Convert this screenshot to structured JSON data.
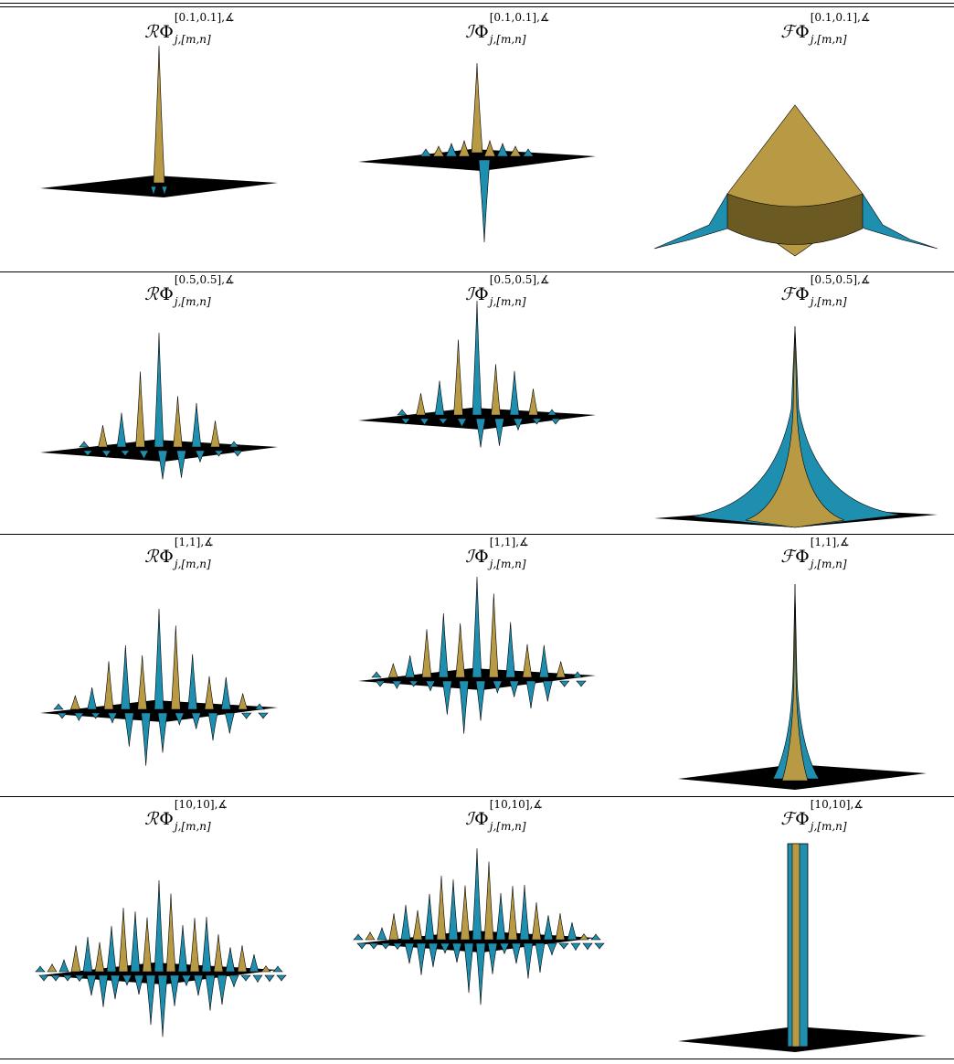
{
  "columns": [
    {
      "operator": "ℛ",
      "symbol": "Φ"
    },
    {
      "operator": "ℐ",
      "symbol": "Φ"
    },
    {
      "operator": "ℱ",
      "symbol": "Φ"
    }
  ],
  "rows": [
    {
      "param": "[0.1,0.1],∡",
      "subscript": "j,[m,n]",
      "cells": [
        {
          "kind": "real",
          "waves": 1,
          "peak": 1.0
        },
        {
          "kind": "imag",
          "waves": 1,
          "peak": 1.0
        },
        {
          "kind": "fourier",
          "style": "wide"
        }
      ]
    },
    {
      "param": "[0.5,0.5],∡",
      "subscript": "j,[m,n]",
      "cells": [
        {
          "kind": "real",
          "waves": 3,
          "peak": 1.0
        },
        {
          "kind": "imag",
          "waves": 3,
          "peak": 1.0
        },
        {
          "kind": "fourier",
          "style": "spike"
        }
      ]
    },
    {
      "param": "[1,1],∡",
      "subscript": "j,[m,n]",
      "cells": [
        {
          "kind": "real",
          "waves": 5,
          "peak": 1.0
        },
        {
          "kind": "imag",
          "waves": 5,
          "peak": 1.0
        },
        {
          "kind": "fourier",
          "style": "narrow"
        }
      ]
    },
    {
      "param": "[10,10],∡",
      "subscript": "j,[m,n]",
      "cells": [
        {
          "kind": "real",
          "waves": 9,
          "peak": 1.0
        },
        {
          "kind": "imag",
          "waves": 9,
          "peak": 1.0
        },
        {
          "kind": "fourier",
          "style": "pillar"
        }
      ]
    }
  ],
  "colors": {
    "gold": "#b89a45",
    "teal": "#1f8fb0",
    "dark": "#000000",
    "gold_dark": "#6b5a22",
    "teal_dark": "#0b4a63"
  }
}
